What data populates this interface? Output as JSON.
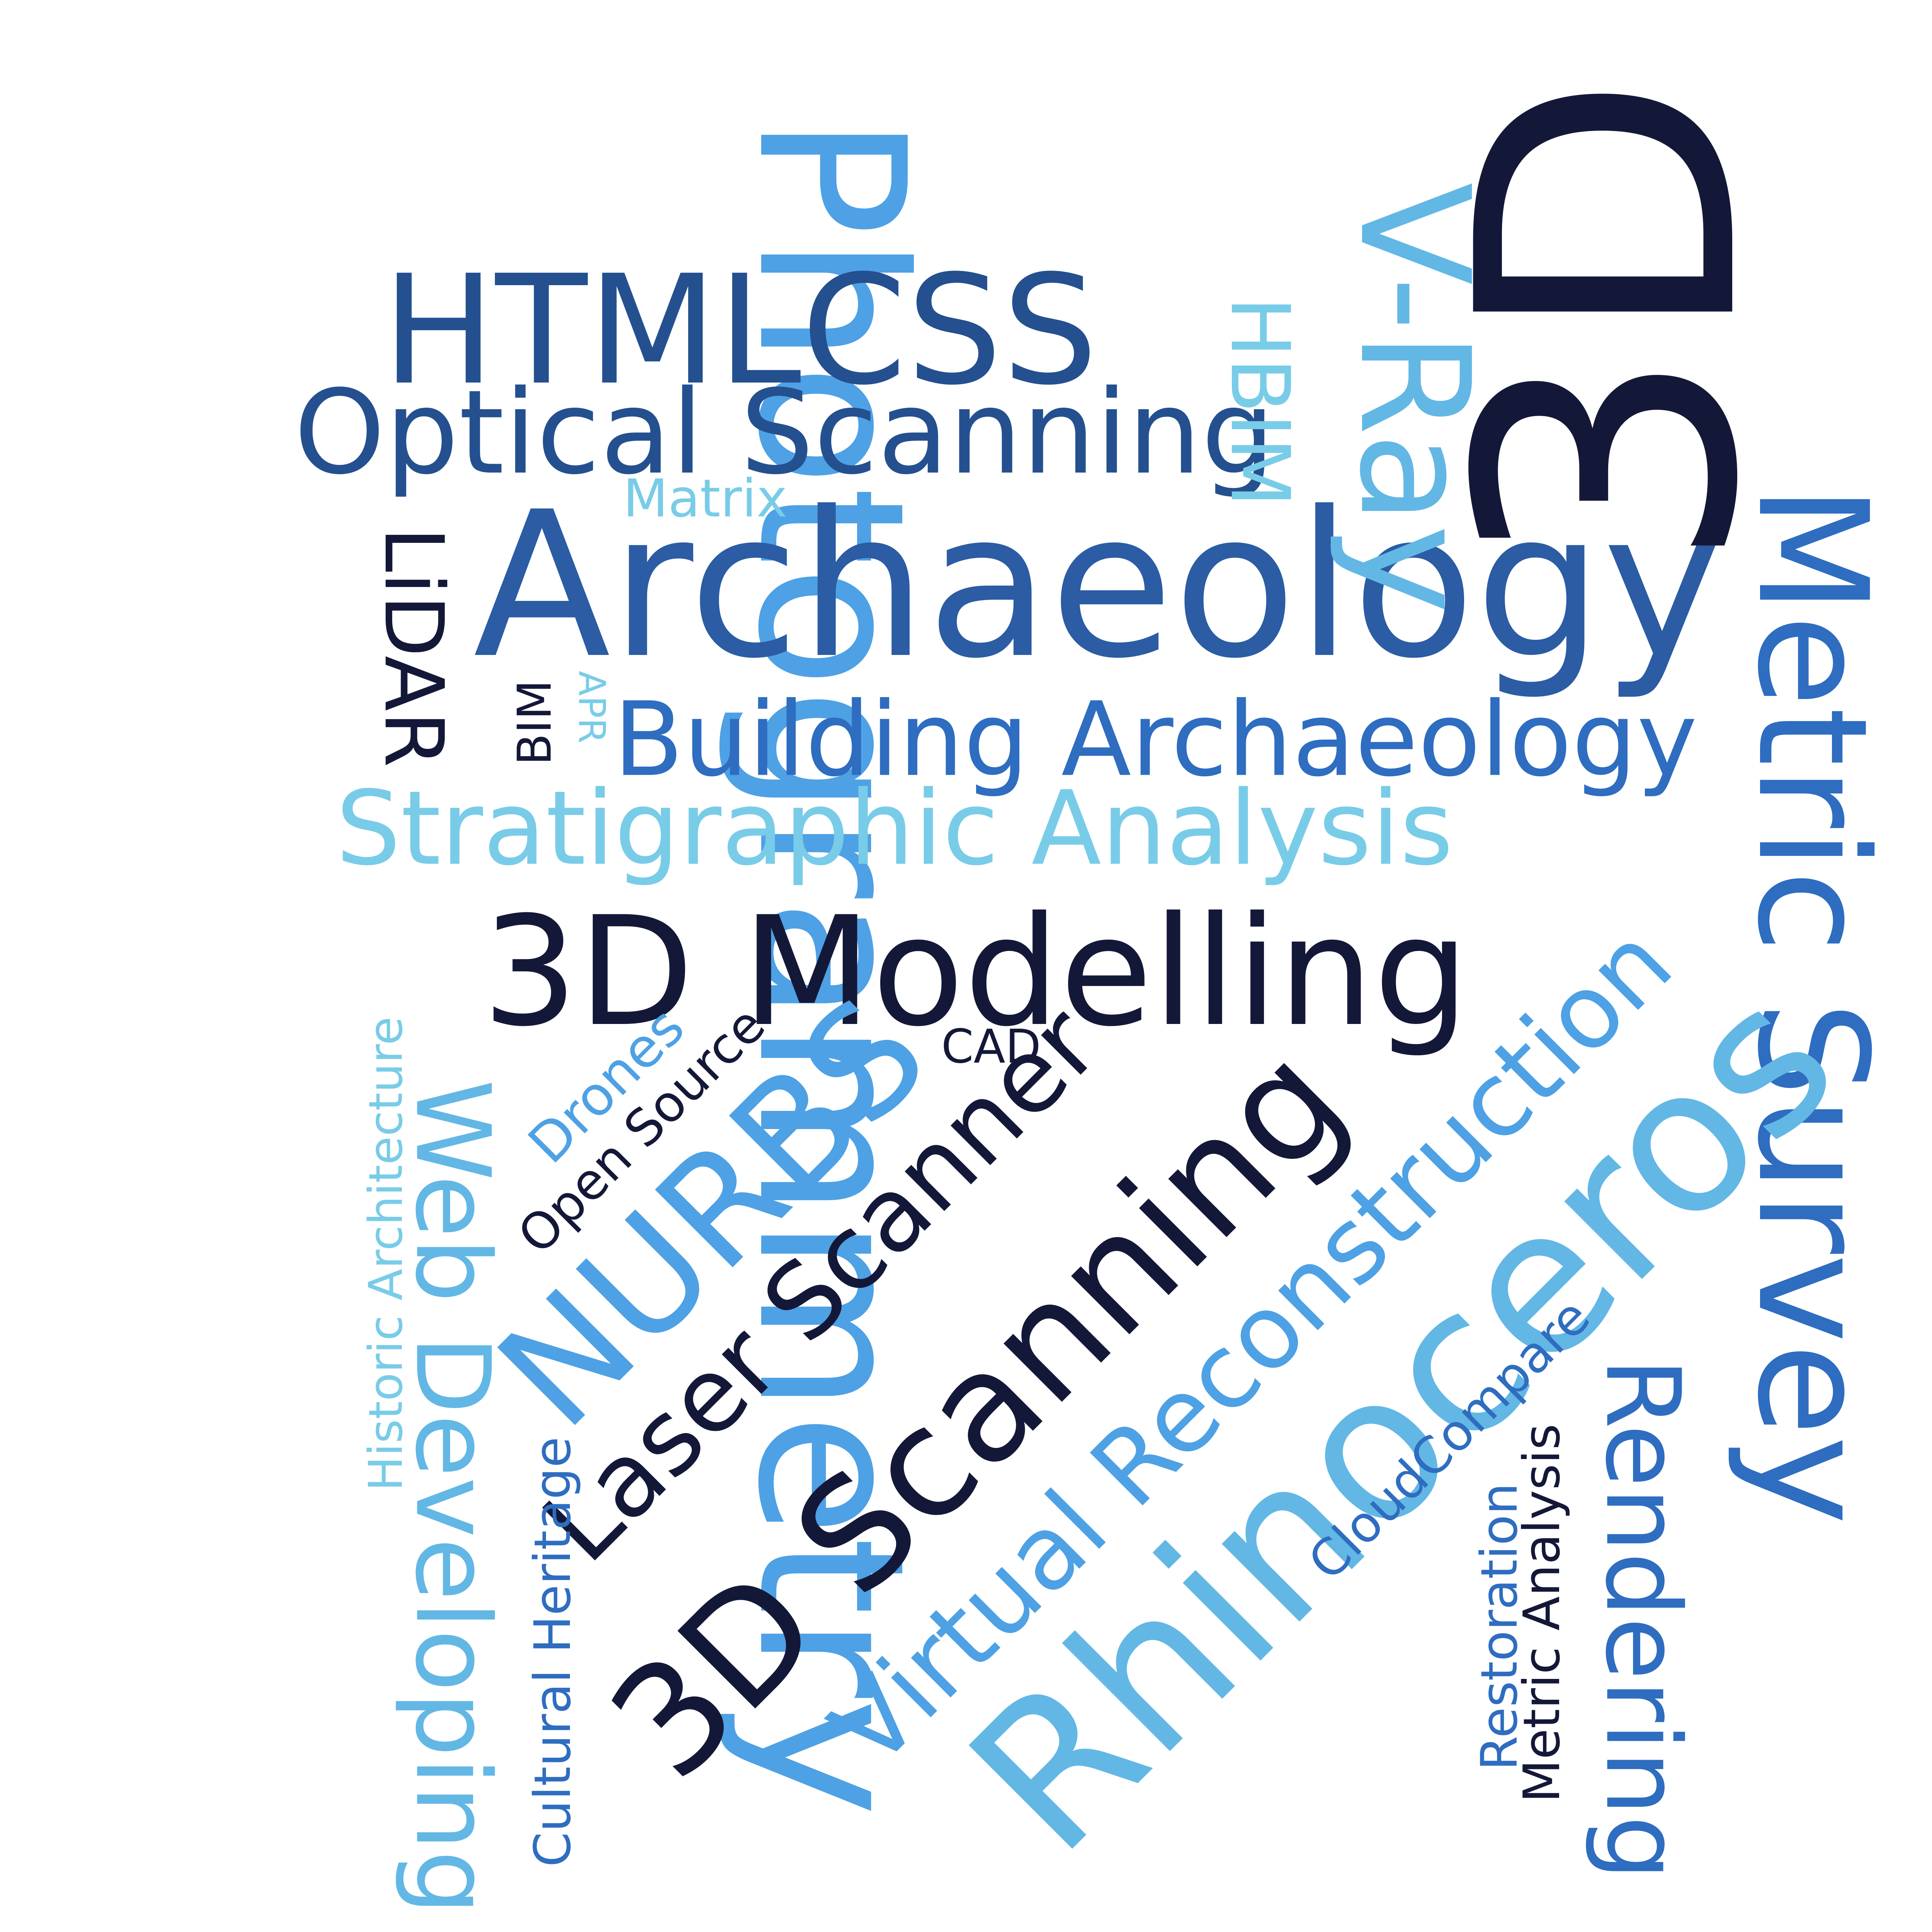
{
  "words": [
    {
      "id": "w_photogrammetry",
      "text": "Photogrammetry",
      "color": "#4EA1E4"
    },
    {
      "id": "w_htmlcss",
      "text": "HTMLCSS",
      "color": "#24508F"
    },
    {
      "id": "w_optical",
      "text": "Optical Scanning",
      "color": "#24508F"
    },
    {
      "id": "w_matrix",
      "text": "Matrix",
      "color": "#79CCE8"
    },
    {
      "id": "w_archaeology",
      "text": "Archaeology",
      "color": "#2B5CA4"
    },
    {
      "id": "w_lidar",
      "text": "LiDAR",
      "color": "#141838"
    },
    {
      "id": "w_bim",
      "text": "BIM",
      "color": "#141838"
    },
    {
      "id": "w_apr",
      "text": "APR",
      "color": "#79CCE8"
    },
    {
      "id": "w_building",
      "text": "Building Archaeology",
      "color": "#2E6DC0"
    },
    {
      "id": "w_strat",
      "text": "Stratigraphic Analysis",
      "color": "#79CCE8"
    },
    {
      "id": "w_hbim",
      "text": "HBIM",
      "color": "#79CCE8"
    },
    {
      "id": "w_vray",
      "text": "V-Ray",
      "color": "#63B7E5"
    },
    {
      "id": "w_3d",
      "text": "3D",
      "color": "#141838"
    },
    {
      "id": "w_metric",
      "text": "Metric Survey",
      "color": "#2E6DC0"
    },
    {
      "id": "w_3dmodel",
      "text": "3D Modelling",
      "color": "#141838"
    },
    {
      "id": "w_cad",
      "text": "CAD",
      "color": "#141838"
    },
    {
      "id": "w_drones",
      "text": "Drones",
      "color": "#4EA1E4"
    },
    {
      "id": "w_opensource",
      "text": "Open Source",
      "color": "#141838"
    },
    {
      "id": "w_nurbs",
      "text": "NURBS",
      "color": "#4EA1E4"
    },
    {
      "id": "w_laser",
      "text": "Laser Scanner",
      "color": "#141838"
    },
    {
      "id": "w_3dscan",
      "text": "3D Scanning",
      "color": "#141838"
    },
    {
      "id": "w_virtual",
      "text": "Virtual Reconstruction",
      "color": "#4EA1E4"
    },
    {
      "id": "w_rhino",
      "text": "Rhinoceros",
      "color": "#63B7E5"
    },
    {
      "id": "w_historic",
      "text": "Historic Architecture",
      "color": "#79CCE8"
    },
    {
      "id": "w_webdev",
      "text": "Web Developing",
      "color": "#63B7E5"
    },
    {
      "id": "w_cultural",
      "text": "Cultural Heritage",
      "color": "#2E6DC0"
    },
    {
      "id": "w_cloud",
      "text": "CloudCompare",
      "color": "#2E6DC0"
    },
    {
      "id": "w_restoration",
      "text": "Restoration",
      "color": "#2E6DC0"
    },
    {
      "id": "w_metricanalysis",
      "text": "Metric Analysis",
      "color": "#141838"
    },
    {
      "id": "w_rendering",
      "text": "Rendering",
      "color": "#2E6DC0"
    }
  ]
}
